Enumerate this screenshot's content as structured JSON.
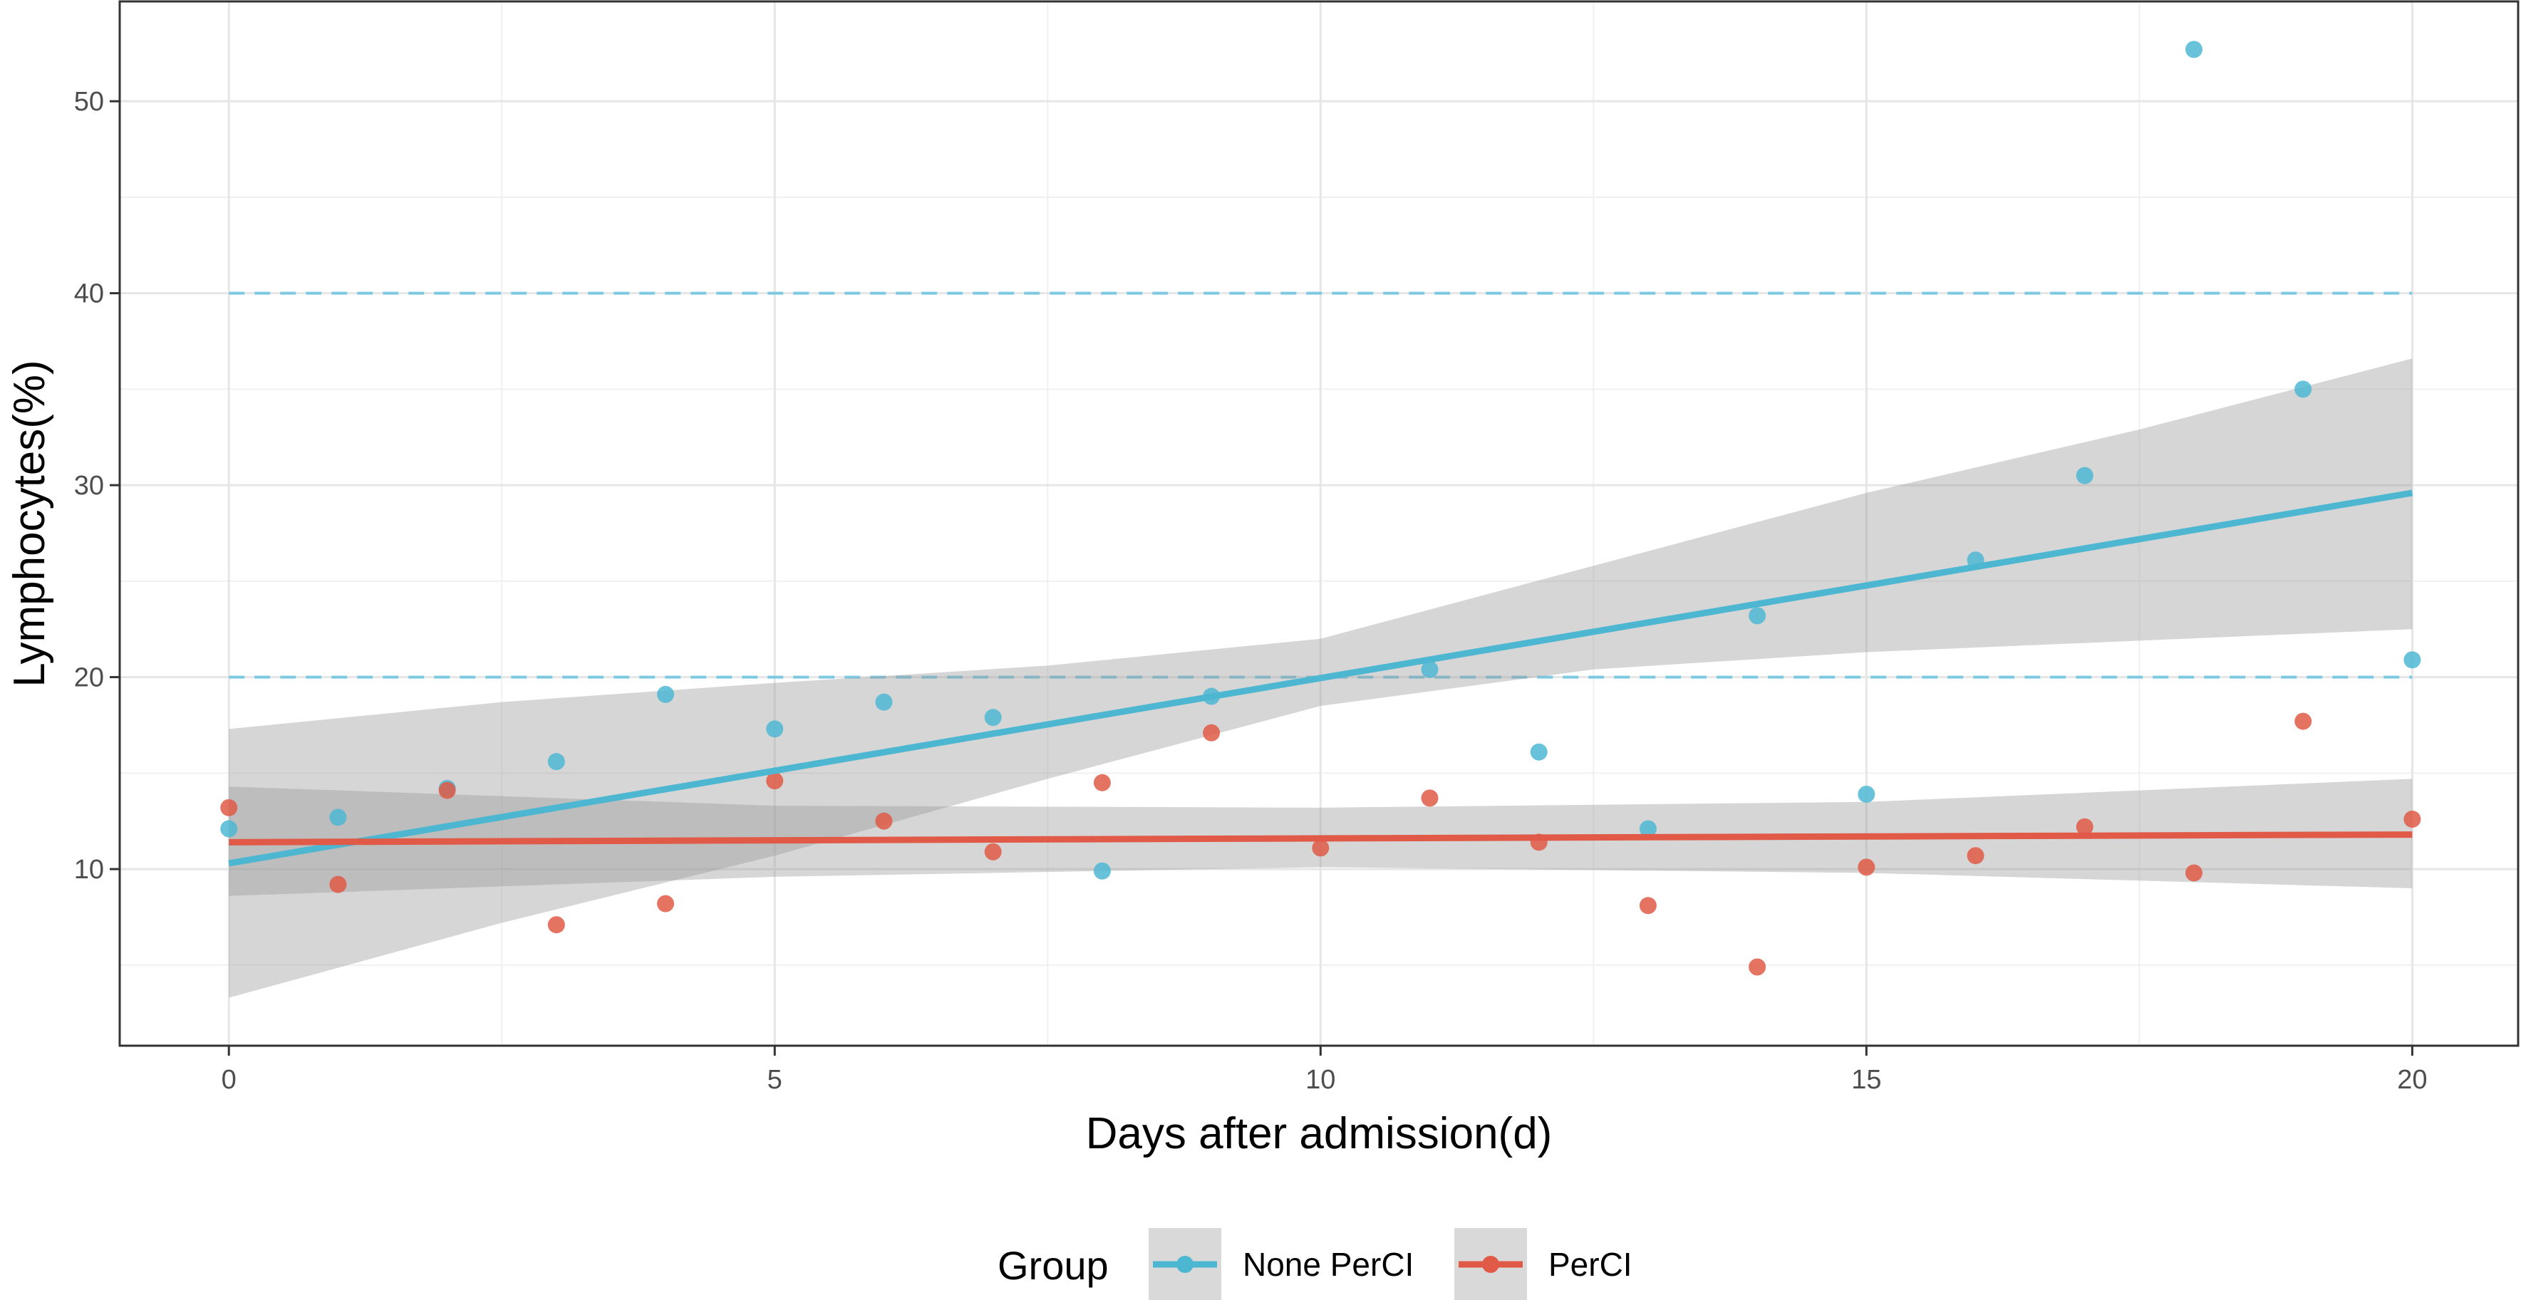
{
  "chart_data": {
    "type": "scatter",
    "title": "",
    "xlabel": "Days after admission(d)",
    "ylabel": "Lymphocytes(%)",
    "xlim": [
      -1,
      20.97
    ],
    "ylim": [
      0.8,
      55.2
    ],
    "x_ticks": [
      0,
      5,
      10,
      15,
      20
    ],
    "x_tick_labels": [
      "0",
      "5",
      "10",
      "15",
      "20"
    ],
    "y_ticks": [
      10,
      20,
      30,
      40,
      50
    ],
    "y_tick_labels": [
      "10",
      "20",
      "30",
      "40",
      "50"
    ],
    "grid": true,
    "legend_position": "bottom",
    "legend_title": "Group",
    "reference_lines": [
      {
        "y": 20,
        "style": "dashed",
        "color": "#7ec9e2"
      },
      {
        "y": 40,
        "style": "dashed",
        "color": "#7ec9e2"
      }
    ],
    "series": [
      {
        "name": "None PerCI",
        "color": "#4db7d2",
        "x": [
          0,
          1,
          2,
          3,
          4,
          5,
          6,
          7,
          8,
          9,
          11,
          12,
          13,
          14,
          15,
          16,
          17,
          18,
          19,
          20
        ],
        "y": [
          12.1,
          12.7,
          14.2,
          15.6,
          19.1,
          17.3,
          18.7,
          17.9,
          9.9,
          19.0,
          20.4,
          16.1,
          12.1,
          23.2,
          13.9,
          26.1,
          30.5,
          52.7,
          35.0,
          20.9
        ],
        "fit": {
          "x": [
            0,
            20
          ],
          "y": [
            10.3,
            29.6
          ]
        },
        "ci": {
          "x": [
            0,
            2.5,
            5,
            7.5,
            10,
            12.5,
            15,
            17.5,
            20
          ],
          "lower": [
            3.3,
            7.2,
            10.7,
            14.7,
            18.5,
            20.4,
            21.3,
            21.9,
            22.5
          ],
          "upper": [
            17.3,
            18.7,
            19.7,
            20.6,
            22.0,
            25.8,
            29.6,
            32.9,
            36.6
          ]
        }
      },
      {
        "name": "PerCI",
        "color": "#e05a47",
        "x": [
          0,
          1,
          2,
          3,
          4,
          5,
          6,
          7,
          8,
          9,
          10,
          11,
          12,
          13,
          14,
          15,
          16,
          17,
          18,
          19,
          20
        ],
        "y": [
          13.2,
          9.2,
          14.1,
          7.1,
          8.2,
          14.6,
          12.5,
          10.9,
          14.5,
          17.1,
          11.1,
          13.7,
          11.4,
          8.1,
          4.9,
          10.1,
          10.7,
          12.2,
          9.8,
          17.7,
          12.6
        ],
        "fit": {
          "x": [
            0,
            20
          ],
          "y": [
            11.4,
            11.8
          ]
        },
        "ci": {
          "x": [
            0,
            5,
            10,
            15,
            20
          ],
          "lower": [
            8.6,
            9.6,
            10.1,
            9.8,
            9.0
          ],
          "upper": [
            14.3,
            13.3,
            13.2,
            13.5,
            14.7
          ]
        }
      }
    ]
  }
}
